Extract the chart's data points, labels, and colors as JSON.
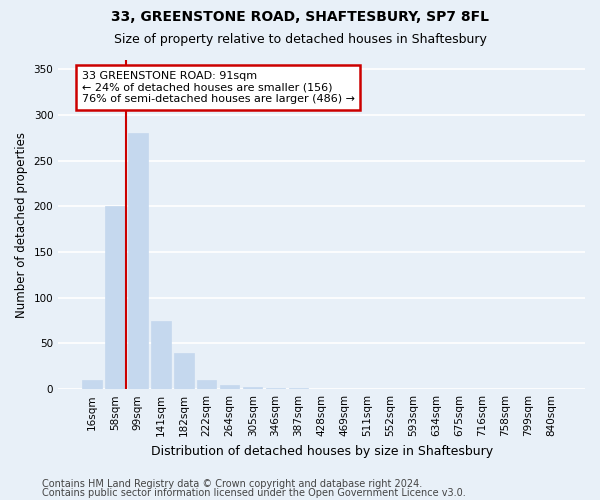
{
  "title": "33, GREENSTONE ROAD, SHAFTESBURY, SP7 8FL",
  "subtitle": "Size of property relative to detached houses in Shaftesbury",
  "xlabel": "Distribution of detached houses by size in Shaftesbury",
  "ylabel": "Number of detached properties",
  "footnote1": "Contains HM Land Registry data © Crown copyright and database right 2024.",
  "footnote2": "Contains public sector information licensed under the Open Government Licence v3.0.",
  "categories": [
    "16sqm",
    "58sqm",
    "99sqm",
    "141sqm",
    "182sqm",
    "222sqm",
    "264sqm",
    "305sqm",
    "346sqm",
    "387sqm",
    "428sqm",
    "469sqm",
    "511sqm",
    "552sqm",
    "593sqm",
    "634sqm",
    "675sqm",
    "716sqm",
    "758sqm",
    "799sqm",
    "840sqm"
  ],
  "values": [
    10,
    200,
    280,
    75,
    40,
    10,
    5,
    2,
    1,
    1,
    0,
    0,
    0,
    0,
    0,
    0,
    0,
    0,
    0,
    0,
    0
  ],
  "bar_color": "#c5d8ee",
  "bar_edge_color": "#c5d8ee",
  "ylim": [
    0,
    360
  ],
  "yticks": [
    0,
    50,
    100,
    150,
    200,
    250,
    300,
    350
  ],
  "annotation_text": "33 GREENSTONE ROAD: 91sqm\n← 24% of detached houses are smaller (156)\n76% of semi-detached houses are larger (486) →",
  "annotation_box_color": "#ffffff",
  "annotation_box_edge": "#cc0000",
  "vline_x": 1.5,
  "background_color": "#e8f0f8",
  "grid_color": "#ffffff",
  "title_fontsize": 10,
  "subtitle_fontsize": 9,
  "xlabel_fontsize": 9,
  "ylabel_fontsize": 8.5,
  "tick_fontsize": 7.5,
  "footnote_fontsize": 7,
  "ann_fontsize": 8
}
